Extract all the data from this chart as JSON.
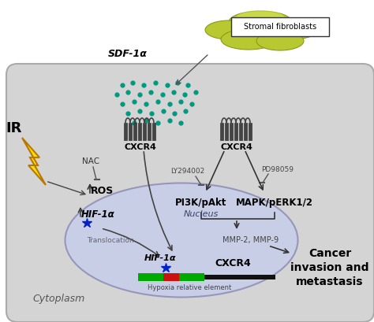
{
  "bg_color": "#ffffff",
  "cell_color": "#d4d4d4",
  "cell_edge": "#aaaaaa",
  "nucleus_color": "#c8ceea",
  "nucleus_edge": "#9090b8",
  "cloud_colors": [
    "#b8c830",
    "#c8d840",
    "#d4e050",
    "#a8b820"
  ],
  "cloud_edge": "#8a9a18",
  "dot_color": "#009980",
  "lightning_yellow": "#ffe000",
  "lightning_edge": "#b87800",
  "bar_green": "#00aa00",
  "bar_red": "#cc1111",
  "bar_black": "#111111",
  "hif_star_color": "#0022cc",
  "arrow_color": "#333333",
  "text_color": "#111111",
  "labels": {
    "stromal": "Stromal fibroblasts",
    "sdf": "SDF-1α",
    "cxcr4_left": "CXCR4",
    "cxcr4_right": "CXCR4",
    "ir": "IR",
    "nac": "NAC",
    "ros": "ROS",
    "hif_cyto": "HIF-1α",
    "translocation": "Translocation",
    "ly": "LY294002",
    "pd": "PD98059",
    "pi3k": "PI3K/pAkt",
    "mapk": "MAPK/pERK1/2",
    "mmp": "MMP-2, MMP-9",
    "cancer": "Cancer\ninvasion and\nmetastasis",
    "nucleus": "Nucleus",
    "hif_nucleus": "HIF-1α",
    "cxcr4_nucleus": "CXCR4",
    "hypoxia": "Hypoxia relative element",
    "cytoplasm": "Cytoplasm"
  },
  "dots_x": [
    155,
    168,
    182,
    197,
    212,
    225,
    238,
    148,
    162,
    177,
    191,
    206,
    220,
    234,
    248,
    155,
    170,
    185,
    200,
    215,
    229,
    243,
    162,
    177,
    192,
    207,
    221,
    235,
    170,
    185,
    200,
    215,
    229
  ],
  "dots_y": [
    108,
    105,
    108,
    105,
    108,
    105,
    108,
    120,
    117,
    120,
    117,
    120,
    117,
    120,
    117,
    132,
    129,
    132,
    129,
    132,
    129,
    132,
    144,
    141,
    144,
    141,
    144,
    141,
    156,
    153,
    156,
    153,
    156
  ]
}
